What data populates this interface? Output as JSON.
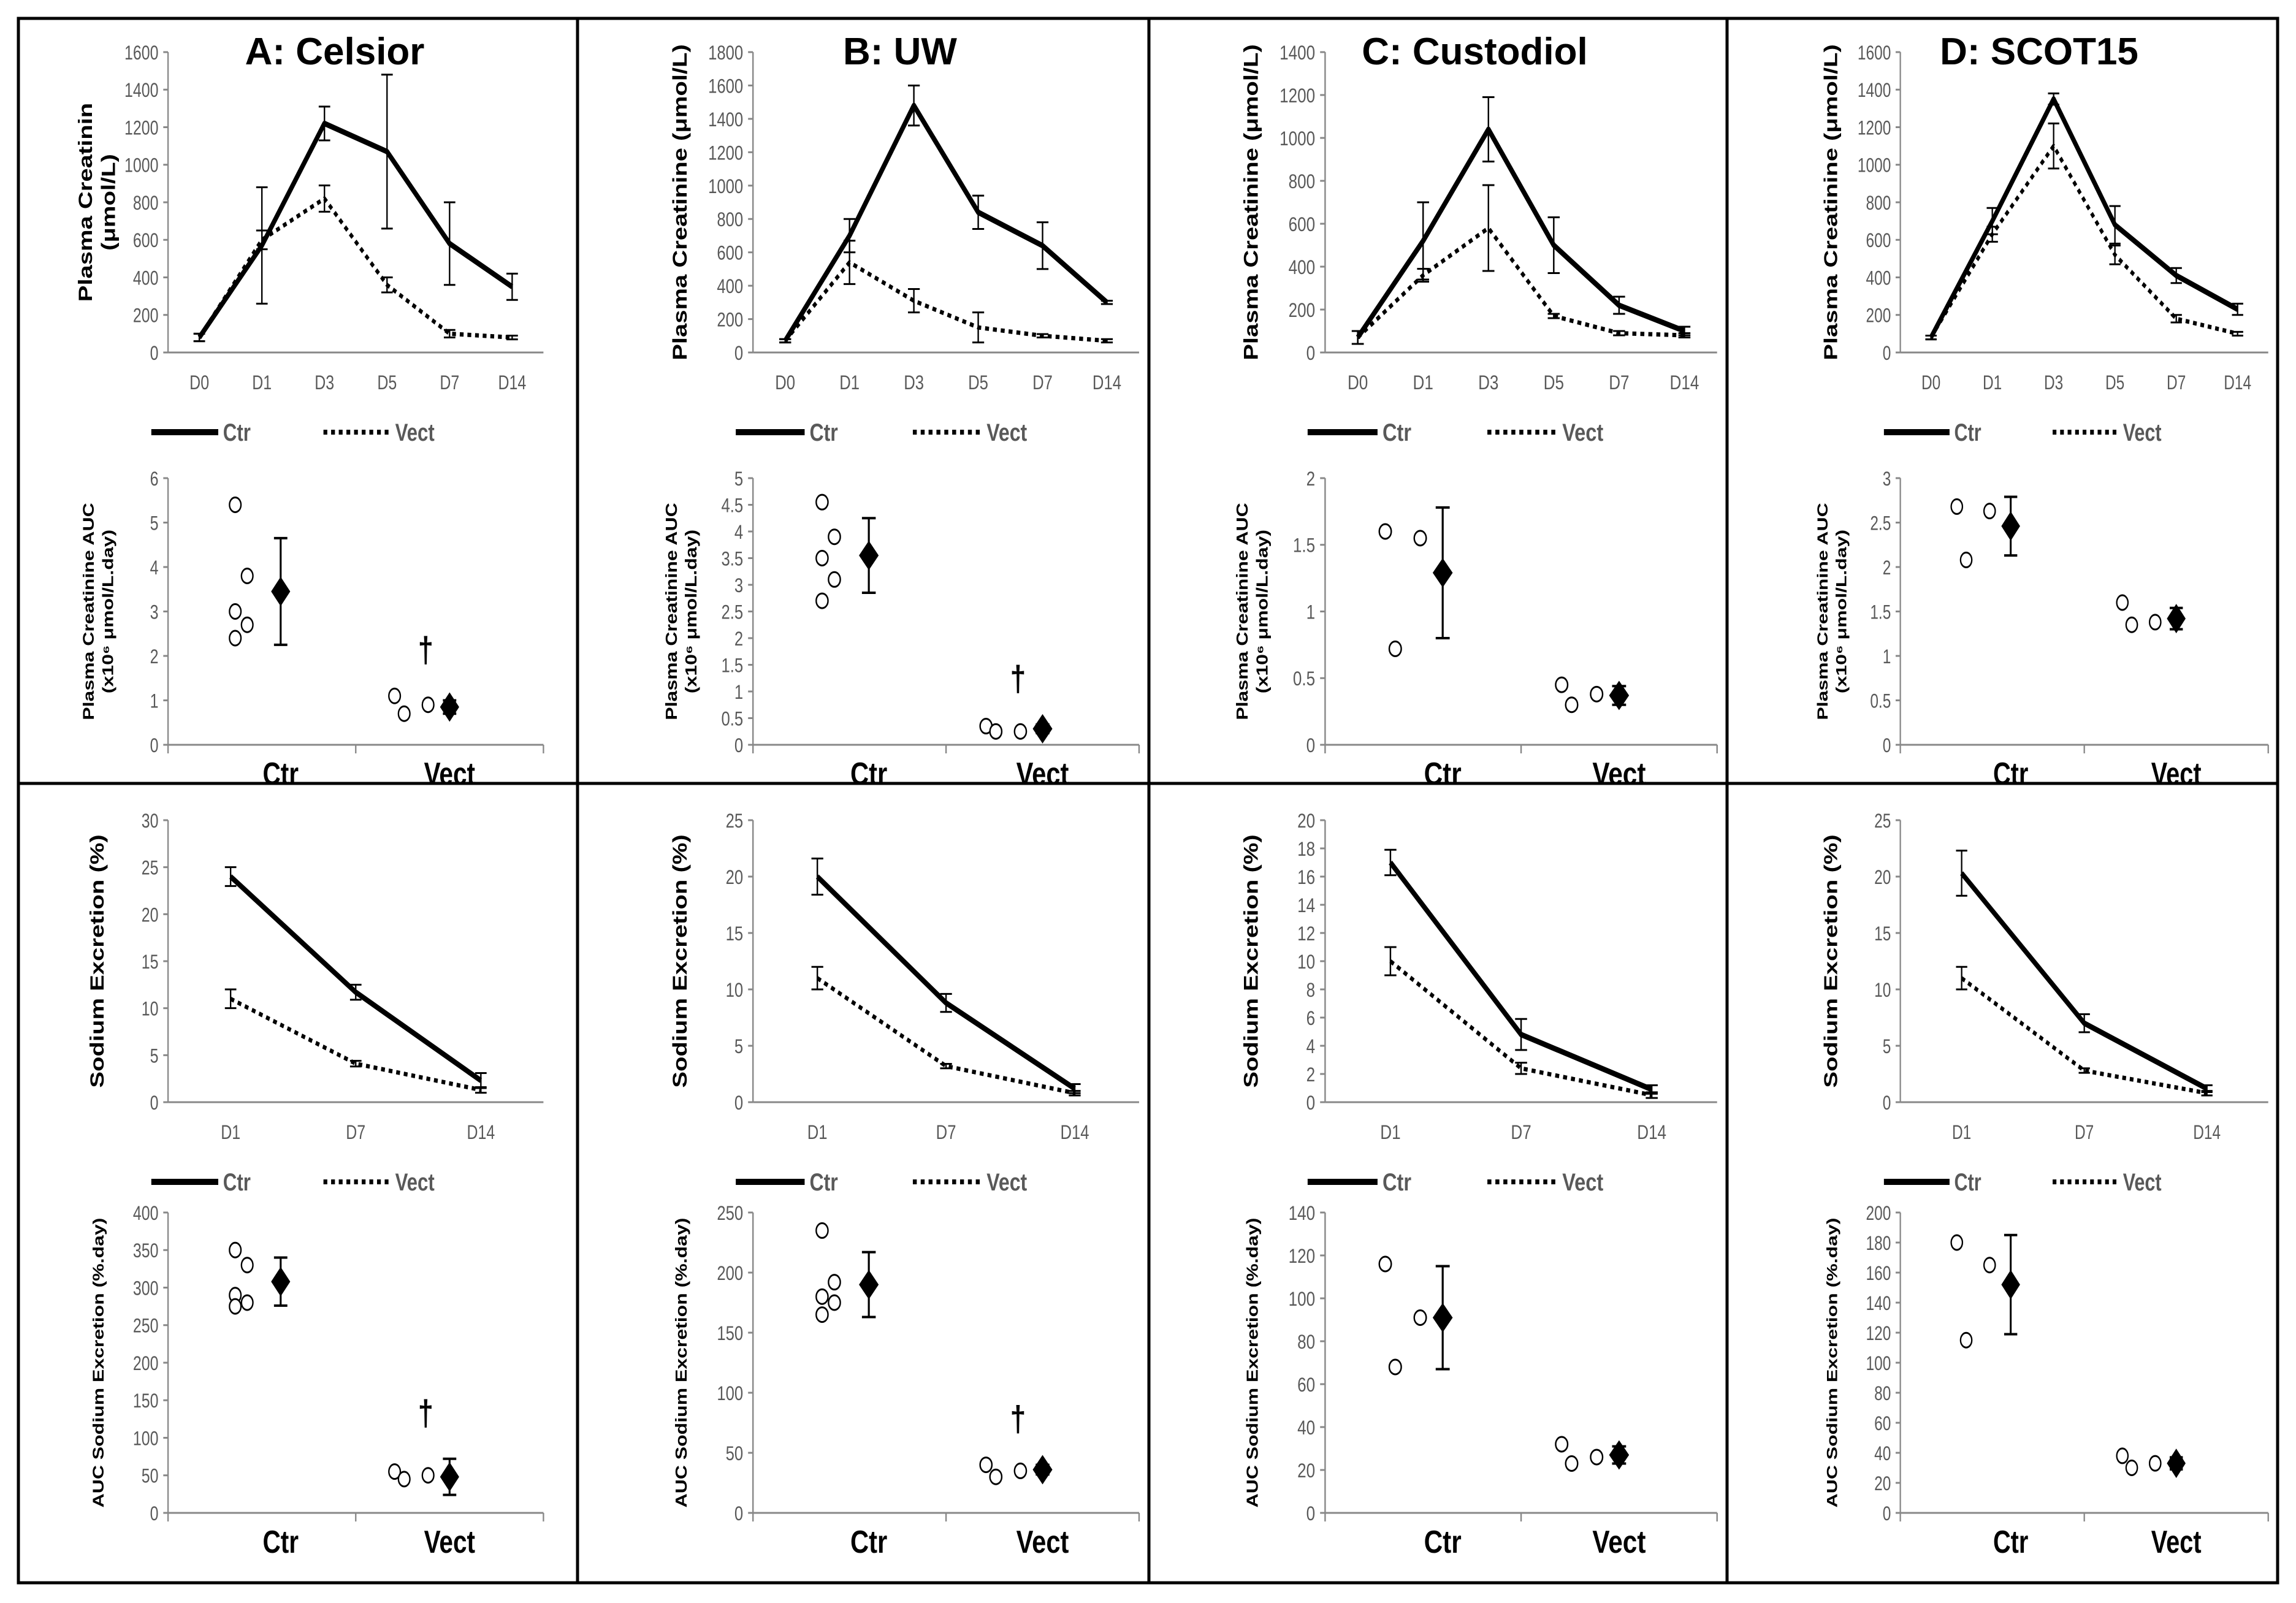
{
  "chart_data": [
    {
      "id": "A",
      "title": "A: Celsior",
      "creat_line": {
        "type": "line",
        "ylabel": [
          "Plasma Creatinin",
          "(μmol/L)"
        ],
        "categories": [
          "D0",
          "D1",
          "D3",
          "D5",
          "D7",
          "D14"
        ],
        "yticks": [
          "0",
          "200",
          "400",
          "600",
          "800",
          "1000",
          "1200",
          "1400",
          "1600"
        ],
        "ylim": [
          0,
          1600
        ],
        "series": [
          {
            "name": "Ctr",
            "style": "solid",
            "values": [
              80,
              570,
              1220,
              1070,
              580,
              350
            ],
            "err": [
              20,
              310,
              90,
              410,
              220,
              70
            ]
          },
          {
            "name": "Vect",
            "style": "dotted",
            "values": [
              80,
              600,
              820,
              360,
              100,
              80
            ],
            "err": [
              20,
              50,
              70,
              40,
              20,
              10
            ]
          }
        ],
        "legend": [
          "Ctr",
          "Vect"
        ]
      },
      "creat_auc": {
        "type": "scatter",
        "ylabel": [
          "Plasma Creatinine AUC",
          "(x10⁶ μmol/L.day)"
        ],
        "yticks": [
          "0",
          "1",
          "2",
          "3",
          "4",
          "5",
          "6"
        ],
        "ylim": [
          0,
          6
        ],
        "groups": [
          "Ctr",
          "Vect"
        ],
        "points": [
          [
            5.4,
            3.8,
            3.0,
            2.7,
            2.4
          ],
          [
            1.1,
            0.9,
            0.7
          ]
        ],
        "means": [
          3.45,
          0.85
        ],
        "err": [
          1.2,
          0.15
        ],
        "annotation": "†"
      },
      "na_line": {
        "type": "line",
        "ylabel": [
          "Sodium Excretion (%)"
        ],
        "categories": [
          "D1",
          "D7",
          "D14"
        ],
        "yticks": [
          "0",
          "5",
          "10",
          "15",
          "20",
          "25",
          "30"
        ],
        "ylim": [
          0,
          30
        ],
        "series": [
          {
            "name": "Ctr",
            "style": "solid",
            "values": [
              24,
              11.7,
              2.3
            ],
            "err": [
              1,
              0.8,
              0.8
            ]
          },
          {
            "name": "Vect",
            "style": "dotted",
            "values": [
              11,
              4.1,
              1.3
            ],
            "err": [
              1,
              0.3,
              0.3
            ]
          }
        ],
        "legend": [
          "Ctr",
          "Vect"
        ]
      },
      "na_auc": {
        "type": "scatter",
        "ylabel": [
          "AUC Sodium Excretion (%.day)"
        ],
        "yticks": [
          "0",
          "50",
          "100",
          "150",
          "200",
          "250",
          "300",
          "350",
          "400"
        ],
        "ylim": [
          0,
          400
        ],
        "groups": [
          "Ctr",
          "Vect"
        ],
        "points": [
          [
            350,
            330,
            290,
            280,
            275
          ],
          [
            55,
            50,
            45
          ]
        ],
        "means": [
          308,
          48
        ],
        "err": [
          32,
          24
        ],
        "annotation": "†"
      }
    },
    {
      "id": "B",
      "title": "B: UW",
      "creat_line": {
        "type": "line",
        "ylabel": [
          "Plasma  Creatinine (μmol/L)"
        ],
        "categories": [
          "D0",
          "D1",
          "D3",
          "D5",
          "D7",
          "D14"
        ],
        "yticks": [
          "0",
          "200",
          "400",
          "600",
          "800",
          "1000",
          "1200",
          "1400",
          "1600",
          "1800"
        ],
        "ylim": [
          0,
          1800
        ],
        "series": [
          {
            "name": "Ctr",
            "style": "solid",
            "values": [
              70,
              700,
              1480,
              840,
              640,
              300
            ],
            "err": [
              10,
              100,
              120,
              100,
              140,
              10
            ]
          },
          {
            "name": "Vect",
            "style": "dotted",
            "values": [
              70,
              540,
              310,
              150,
              100,
              70
            ],
            "err": [
              10,
              130,
              70,
              90,
              10,
              10
            ]
          }
        ],
        "legend": [
          "Ctr",
          "Vect"
        ]
      },
      "creat_auc": {
        "type": "scatter",
        "ylabel": [
          "Plasma  Creatinine AUC",
          "(x10⁶ μmol/L.day)"
        ],
        "yticks": [
          "0",
          "0.5",
          "1",
          "1.5",
          "2",
          "2.5",
          "3",
          "3.5",
          "4",
          "4.5",
          "5"
        ],
        "ylim": [
          0,
          5
        ],
        "groups": [
          "Ctr",
          "Vect"
        ],
        "points": [
          [
            4.55,
            3.9,
            3.5,
            3.1,
            2.7
          ],
          [
            0.35,
            0.25,
            0.25
          ]
        ],
        "means": [
          3.55,
          0.3
        ],
        "err": [
          0.7,
          0.08
        ],
        "annotation": "†"
      },
      "na_line": {
        "type": "line",
        "ylabel": [
          "Sodium Excretion (%)"
        ],
        "categories": [
          "D1",
          "D7",
          "D14"
        ],
        "yticks": [
          "0",
          "5",
          "10",
          "15",
          "20",
          "25"
        ],
        "ylim": [
          0,
          25
        ],
        "series": [
          {
            "name": "Ctr",
            "style": "solid",
            "values": [
              20,
              8.8,
              1.2
            ],
            "err": [
              1.6,
              0.8,
              0.4
            ]
          },
          {
            "name": "Vect",
            "style": "dotted",
            "values": [
              11,
              3.2,
              0.8
            ],
            "err": [
              1,
              0.2,
              0.2
            ]
          }
        ],
        "legend": [
          "Ctr",
          "Vect"
        ]
      },
      "na_auc": {
        "type": "scatter",
        "ylabel": [
          "AUC Sodium Excretion (%.day)"
        ],
        "yticks": [
          "0",
          "50",
          "100",
          "150",
          "200",
          "250"
        ],
        "ylim": [
          0,
          250
        ],
        "groups": [
          "Ctr",
          "Vect"
        ],
        "points": [
          [
            235,
            192,
            180,
            175,
            165
          ],
          [
            40,
            35,
            30
          ]
        ],
        "means": [
          190,
          36
        ],
        "err": [
          27,
          4
        ],
        "annotation": "†"
      }
    },
    {
      "id": "C",
      "title": "C: Custodiol",
      "creat_line": {
        "type": "line",
        "ylabel": [
          "Plasma Creatinine  (μmol/L)"
        ],
        "categories": [
          "D0",
          "D1",
          "D3",
          "D5",
          "D7",
          "D14"
        ],
        "yticks": [
          "0",
          "200",
          "400",
          "600",
          "800",
          "1000",
          "1200",
          "1400"
        ],
        "ylim": [
          0,
          1400
        ],
        "series": [
          {
            "name": "Ctr",
            "style": "solid",
            "values": [
              70,
              520,
              1040,
              500,
              220,
              100
            ],
            "err": [
              30,
              180,
              150,
              130,
              40,
              20
            ]
          },
          {
            "name": "Vect",
            "style": "dotted",
            "values": [
              70,
              360,
              580,
              170,
              90,
              80
            ],
            "err": [
              30,
              30,
              200,
              10,
              10,
              10
            ]
          }
        ],
        "legend": [
          "Ctr",
          "Vect"
        ]
      },
      "creat_auc": {
        "type": "scatter",
        "ylabel": [
          "Plasma Creatinine AUC",
          "(x10⁶ μmol/L.day)"
        ],
        "yticks": [
          "0",
          "0.5",
          "1",
          "1.5",
          "2"
        ],
        "ylim": [
          0,
          2
        ],
        "groups": [
          "Ctr",
          "Vect"
        ],
        "points": [
          [
            1.6,
            1.55,
            0.72
          ],
          [
            0.45,
            0.38,
            0.3
          ]
        ],
        "means": [
          1.29,
          0.37
        ],
        "err": [
          0.49,
          0.07
        ],
        "annotation": ""
      },
      "na_line": {
        "type": "line",
        "ylabel": [
          "Sodium Excretion (%)"
        ],
        "categories": [
          "D1",
          "D7",
          "D14"
        ],
        "yticks": [
          "0",
          "2",
          "4",
          "6",
          "8",
          "10",
          "12",
          "14",
          "16",
          "18",
          "20"
        ],
        "ylim": [
          0,
          20
        ],
        "series": [
          {
            "name": "Ctr",
            "style": "solid",
            "values": [
              17,
              4.8,
              0.9
            ],
            "err": [
              0.9,
              1.1,
              0.3
            ]
          },
          {
            "name": "Vect",
            "style": "dotted",
            "values": [
              10,
              2.4,
              0.5
            ],
            "err": [
              1,
              0.4,
              0.2
            ]
          }
        ],
        "legend": [
          "Ctr",
          "Vect"
        ]
      },
      "na_auc": {
        "type": "scatter",
        "ylabel": [
          "AUC Sodium Excretion (%.day)"
        ],
        "yticks": [
          "0",
          "20",
          "40",
          "60",
          "80",
          "100",
          "120",
          "140"
        ],
        "ylim": [
          0,
          140
        ],
        "groups": [
          "Ctr",
          "Vect"
        ],
        "points": [
          [
            116,
            91,
            68
          ],
          [
            32,
            26,
            23
          ]
        ],
        "means": [
          91,
          27
        ],
        "err": [
          24,
          4
        ],
        "annotation": ""
      }
    },
    {
      "id": "D",
      "title": "D: SCOT15",
      "creat_line": {
        "type": "line",
        "ylabel": [
          "Plasma  Creatinine (μmol/L)"
        ],
        "categories": [
          "D0",
          "D1",
          "D3",
          "D5",
          "D7",
          "D14"
        ],
        "yticks": [
          "0",
          "200",
          "400",
          "600",
          "800",
          "1000",
          "1200",
          "1400",
          "1600"
        ],
        "ylim": [
          0,
          1600
        ],
        "series": [
          {
            "name": "Ctr",
            "style": "solid",
            "values": [
              80,
              700,
              1350,
              680,
              410,
              230
            ],
            "err": [
              10,
              70,
              30,
              100,
              40,
              30
            ]
          },
          {
            "name": "Vect",
            "style": "dotted",
            "values": [
              80,
              630,
              1100,
              520,
              180,
              100
            ],
            "err": [
              10,
              40,
              120,
              50,
              20,
              10
            ]
          }
        ],
        "legend": [
          "Ctr",
          "Vect"
        ]
      },
      "creat_auc": {
        "type": "scatter",
        "ylabel": [
          "Plasma  Creatinine AUC",
          "(x10⁶ μmol/L.day)"
        ],
        "yticks": [
          "0",
          "0.5",
          "1",
          "1.5",
          "2",
          "2.5",
          "3"
        ],
        "ylim": [
          0,
          3
        ],
        "groups": [
          "Ctr",
          "Vect"
        ],
        "points": [
          [
            2.68,
            2.63,
            2.08
          ],
          [
            1.6,
            1.38,
            1.35
          ]
        ],
        "means": [
          2.46,
          1.42
        ],
        "err": [
          0.33,
          0.12
        ],
        "annotation": ""
      },
      "na_line": {
        "type": "line",
        "ylabel": [
          "Sodium Excretion (%)"
        ],
        "categories": [
          "D1",
          "D7",
          "D14"
        ],
        "yticks": [
          "0",
          "5",
          "10",
          "15",
          "20",
          "25"
        ],
        "ylim": [
          0,
          25
        ],
        "series": [
          {
            "name": "Ctr",
            "style": "solid",
            "values": [
              20.3,
              7,
              1.2
            ],
            "err": [
              2,
              0.8,
              0.3
            ]
          },
          {
            "name": "Vect",
            "style": "dotted",
            "values": [
              11,
              2.8,
              0.8
            ],
            "err": [
              1,
              0.2,
              0.2
            ]
          }
        ],
        "legend": [
          "Ctr",
          "Vect"
        ]
      },
      "na_auc": {
        "type": "scatter",
        "ylabel": [
          "AUC Sodium Excretion (%.day)"
        ],
        "yticks": [
          "0",
          "20",
          "40",
          "60",
          "80",
          "100",
          "120",
          "140",
          "160",
          "180",
          "200"
        ],
        "ylim": [
          0,
          200
        ],
        "groups": [
          "Ctr",
          "Vect"
        ],
        "points": [
          [
            180,
            165,
            115
          ],
          [
            38,
            33,
            30
          ]
        ],
        "means": [
          152,
          33
        ],
        "err": [
          33,
          4
        ],
        "annotation": ""
      }
    }
  ]
}
